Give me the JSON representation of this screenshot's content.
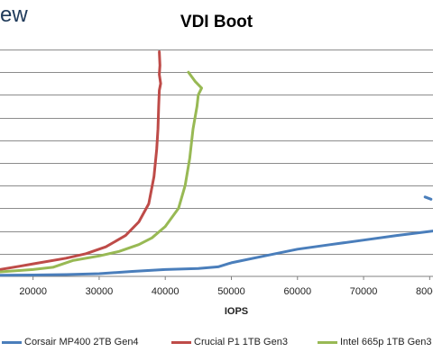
{
  "logo_text": "ew",
  "chart_data": {
    "type": "line",
    "title": "VDI Boot",
    "xlabel": "IOPS",
    "ylabel": "",
    "xlim": [
      15000,
      80500
    ],
    "ylim": [
      0,
      10
    ],
    "x_ticks": [
      20000,
      30000,
      40000,
      50000,
      60000,
      70000,
      80000
    ],
    "x_tick_labels": [
      "20000",
      "30000",
      "40000",
      "50000",
      "60000",
      "70000",
      "80000"
    ],
    "y_gridlines": [
      1,
      2,
      3,
      4,
      5,
      6,
      7,
      8,
      9,
      10
    ],
    "grid": true,
    "legend_position": "bottom",
    "series": [
      {
        "name": "Corsair MP400 2TB Gen4",
        "color": "#4a7ebb",
        "points": [
          [
            15000,
            0.05
          ],
          [
            20000,
            0.06
          ],
          [
            25000,
            0.08
          ],
          [
            30000,
            0.12
          ],
          [
            35000,
            0.22
          ],
          [
            40000,
            0.3
          ],
          [
            45000,
            0.35
          ],
          [
            48000,
            0.42
          ],
          [
            50000,
            0.6
          ],
          [
            55000,
            0.9
          ],
          [
            60000,
            1.2
          ],
          [
            65000,
            1.4
          ],
          [
            70000,
            1.6
          ],
          [
            75000,
            1.8
          ],
          [
            80500,
            2.0
          ]
        ]
      },
      {
        "name": "Corsair MP400 2TB Gen4 tail",
        "color": "#4a7ebb",
        "points": [
          [
            79300,
            3.5
          ],
          [
            80200,
            3.4
          ]
        ]
      },
      {
        "name": "Crucial P1 1TB Gen3",
        "color": "#be4b48",
        "points": [
          [
            15000,
            0.3
          ],
          [
            18000,
            0.45
          ],
          [
            20000,
            0.55
          ],
          [
            25000,
            0.8
          ],
          [
            28000,
            1.0
          ],
          [
            31000,
            1.3
          ],
          [
            34000,
            1.8
          ],
          [
            36000,
            2.4
          ],
          [
            37500,
            3.2
          ],
          [
            38300,
            4.4
          ],
          [
            38700,
            5.6
          ],
          [
            38900,
            6.5
          ],
          [
            39000,
            7.5
          ],
          [
            39100,
            8.2
          ],
          [
            39300,
            8.5
          ],
          [
            39100,
            8.9
          ],
          [
            39200,
            9.3
          ],
          [
            39100,
            9.9
          ]
        ]
      },
      {
        "name": "Intel 665p 1TB Gen3",
        "color": "#98b954",
        "points": [
          [
            15000,
            0.2
          ],
          [
            20000,
            0.3
          ],
          [
            23000,
            0.4
          ],
          [
            26000,
            0.7
          ],
          [
            30000,
            0.9
          ],
          [
            33000,
            1.1
          ],
          [
            36000,
            1.4
          ],
          [
            38000,
            1.7
          ],
          [
            40000,
            2.2
          ],
          [
            42000,
            3.0
          ],
          [
            43000,
            4.0
          ],
          [
            43700,
            5.2
          ],
          [
            44200,
            6.5
          ],
          [
            44800,
            7.5
          ],
          [
            45000,
            8.0
          ],
          [
            45500,
            8.3
          ],
          [
            44500,
            8.6
          ],
          [
            43500,
            9.0
          ]
        ]
      }
    ],
    "legend": [
      {
        "label": "Corsair MP400 2TB Gen4",
        "color": "#4a7ebb"
      },
      {
        "label": "Crucial P1 1TB Gen3",
        "color": "#be4b48"
      },
      {
        "label": "Intel 665p 1TB Gen3",
        "color": "#98b954"
      }
    ]
  }
}
